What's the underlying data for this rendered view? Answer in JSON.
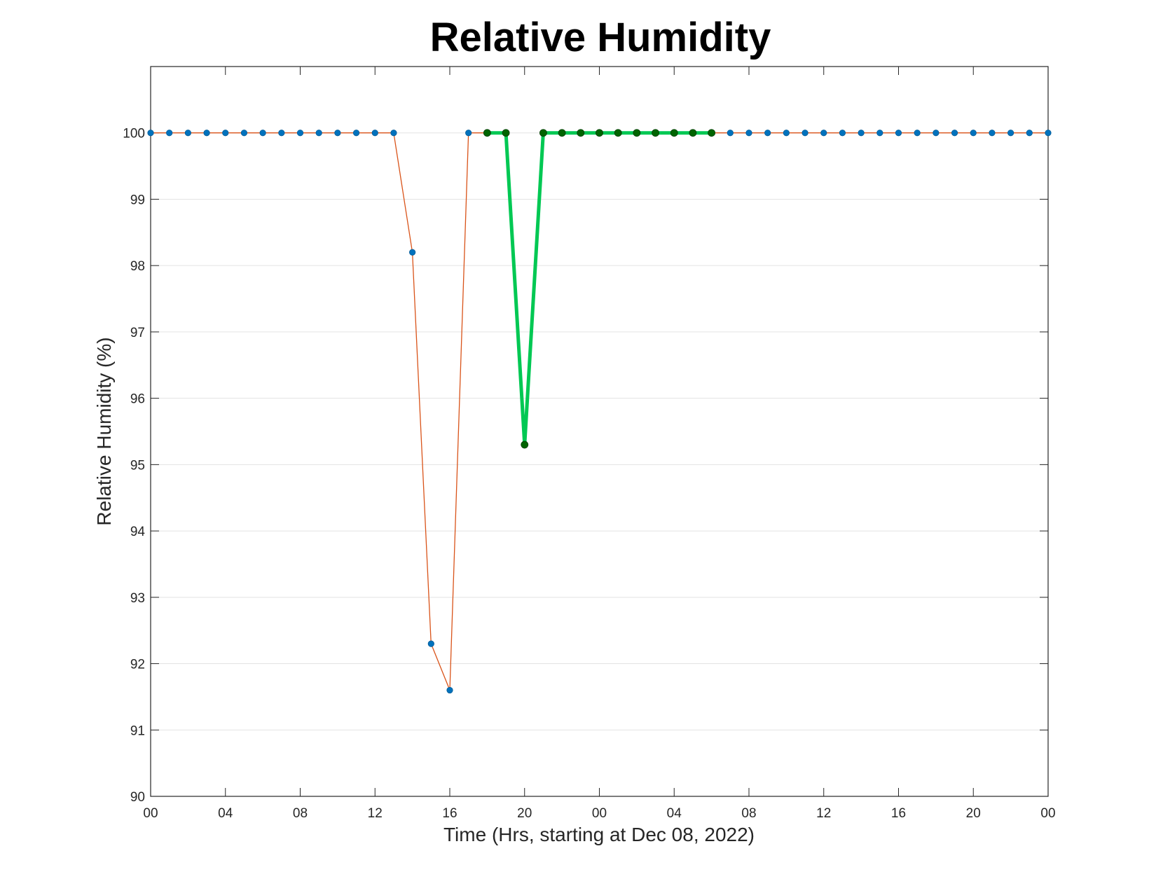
{
  "chart_data": {
    "type": "line",
    "title": "Relative Humidity",
    "xlabel": "Time (Hrs, starting at Dec 08, 2022)",
    "ylabel": "Relative Humidity (%)",
    "xlim": [
      0,
      48
    ],
    "ylim": [
      90,
      101
    ],
    "x_ticks": [
      0,
      4,
      8,
      12,
      16,
      20,
      24,
      28,
      32,
      36,
      40,
      44,
      48
    ],
    "x_tick_labels": [
      "00",
      "04",
      "08",
      "12",
      "16",
      "20",
      "00",
      "04",
      "08",
      "12",
      "16",
      "20",
      "00"
    ],
    "y_ticks": [
      90,
      91,
      92,
      93,
      94,
      95,
      96,
      97,
      98,
      99,
      100
    ],
    "y_tick_labels": [
      "90",
      "91",
      "92",
      "93",
      "94",
      "95",
      "96",
      "97",
      "98",
      "99",
      "100"
    ],
    "grid": true,
    "legend": "none",
    "series": [
      {
        "style": "thin-line-with-markers",
        "line_color": "#D95319",
        "marker_color": "#0072BD",
        "x": [
          0,
          1,
          2,
          3,
          4,
          5,
          6,
          7,
          8,
          9,
          10,
          11,
          12,
          13,
          14,
          15,
          16,
          17,
          18,
          19,
          20,
          21,
          22,
          23,
          24,
          25,
          26,
          27,
          28,
          29,
          30,
          31,
          32,
          33,
          34,
          35,
          36,
          37,
          38,
          39,
          40,
          41,
          42,
          43,
          44,
          45,
          46,
          47,
          48
        ],
        "y": [
          100,
          100,
          100,
          100,
          100,
          100,
          100,
          100,
          100,
          100,
          100,
          100,
          100,
          100,
          98.2,
          92.3,
          91.6,
          100,
          100,
          100,
          95.3,
          100,
          100,
          100,
          100,
          100,
          100,
          100,
          100,
          100,
          100,
          100,
          100,
          100,
          100,
          100,
          100,
          100,
          100,
          100,
          100,
          100,
          100,
          100,
          100,
          100,
          100,
          100,
          100
        ]
      },
      {
        "style": "highlight-thick-line",
        "line_color": "#00C853",
        "marker_color": "#006400",
        "x": [
          18,
          19,
          20,
          21,
          22,
          23,
          24,
          25,
          26,
          27,
          28,
          29,
          30
        ],
        "y": [
          100,
          100,
          95.3,
          100,
          100,
          100,
          100,
          100,
          100,
          100,
          100,
          100,
          100
        ]
      }
    ]
  }
}
